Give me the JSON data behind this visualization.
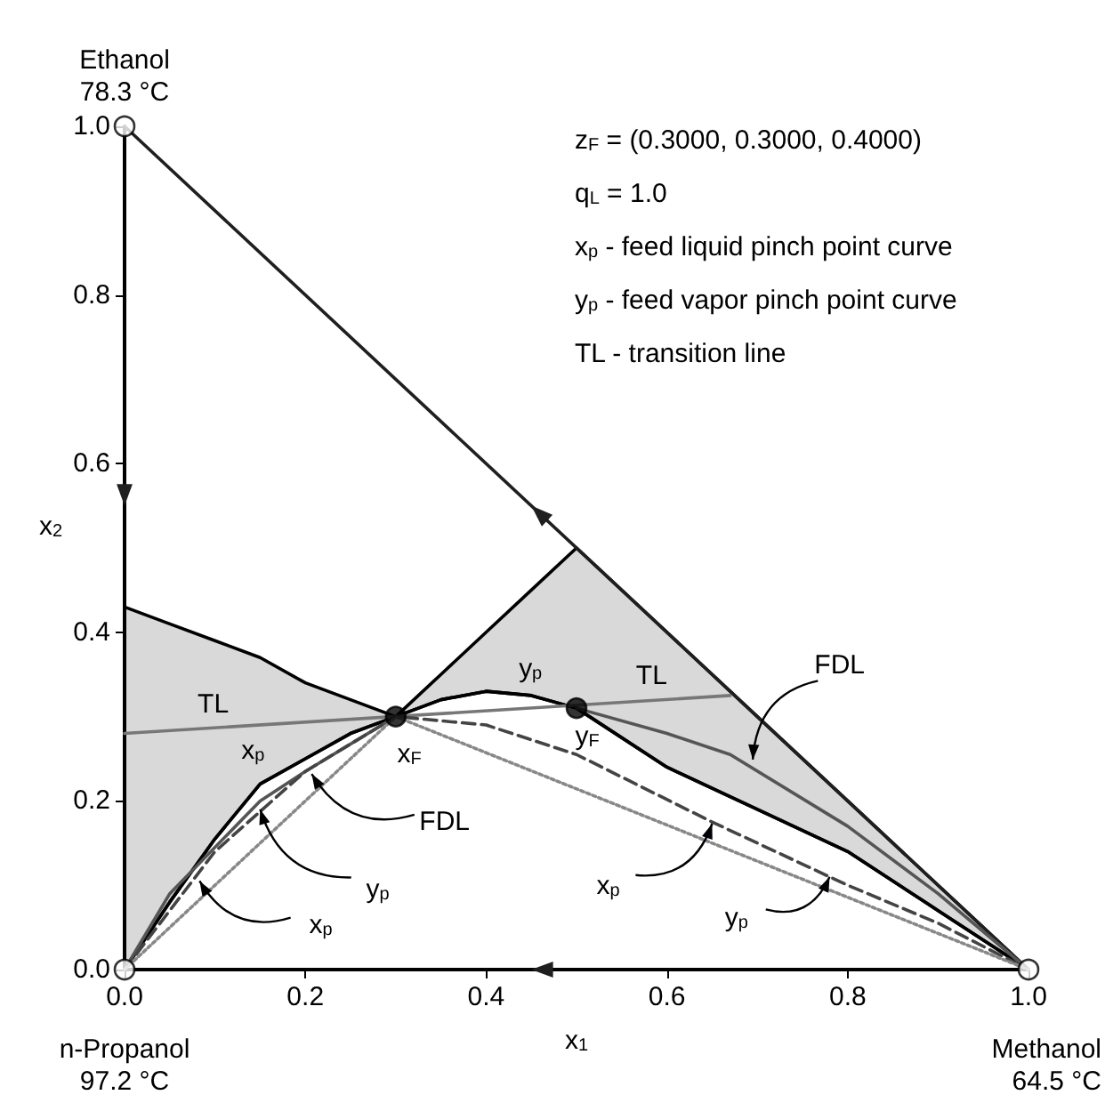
{
  "chart_data": {
    "type": "line",
    "xlabel": "x$_{1}$",
    "ylabel": "x$_{2}$",
    "xlim": [
      0,
      1
    ],
    "ylim": [
      0,
      1
    ],
    "xticks": [
      {
        "value": 0,
        "label": "0.0"
      },
      0.2,
      0.4,
      0.6,
      0.8,
      {
        "value": 1,
        "label": "1.0"
      }
    ],
    "yticks": [
      {
        "value": 0,
        "label": "0.0"
      },
      0.2,
      0.4,
      0.6,
      0.8,
      {
        "value": 1,
        "label": "1.0"
      }
    ],
    "grid": false,
    "series": [
      {
        "color": "#1f1f1f",
        "x": [
          0,
          1
        ],
        "values": [
          1,
          0
        ]
      },
      {
        "color": "#000000",
        "x": [
          0,
          0.05,
          0.1,
          0.15,
          0.2,
          0.25,
          0.3,
          0.35,
          0.4,
          0.45,
          0.5,
          0.6,
          0.7,
          0.8,
          0.9,
          1
        ],
        "values": [
          0,
          0.08,
          0.155,
          0.22,
          0.25,
          0.28,
          0.3,
          0.32,
          0.33,
          0.325,
          0.31,
          0.24,
          0.19,
          0.14,
          0.07,
          0
        ],
        "lower": [
          0,
          0.08,
          0.155,
          0.22,
          0.25,
          0.28,
          0.3,
          0.32,
          0.33,
          0.325,
          0.31,
          0.24,
          0.19,
          0.14,
          0.07,
          0
        ],
        "upper": [
          0.43,
          0.41,
          0.39,
          0.37,
          0.34,
          0.32,
          0.3,
          0.35,
          0.4,
          0.45,
          0.5,
          0.4,
          0.3,
          0.2,
          0.1,
          0
        ]
      },
      {
        "color": "#777777",
        "x": [
          0,
          0.67
        ],
        "values": [
          0.28,
          0.325
        ]
      },
      {
        "color": "#555555",
        "x": [
          0,
          0.05,
          0.15,
          0.2,
          0.3,
          0.4,
          0.5,
          0.6,
          0.67,
          0.8,
          0.9,
          1
        ],
        "values": [
          0,
          0.09,
          0.2,
          0.235,
          0.3,
          null,
          0.31,
          0.28,
          0.255,
          0.17,
          0.09,
          0
        ]
      },
      {
        "color": "#444444",
        "line_style": "dashed",
        "x": [
          0,
          0.1,
          0.2,
          0.3,
          0.4,
          0.5,
          0.65,
          0.8,
          0.9,
          1
        ],
        "values": [
          0,
          0.14,
          0.235,
          0.3,
          0.29,
          0.255,
          0.175,
          0.1,
          0.055,
          0
        ]
      },
      {
        "color": "#888888",
        "line_style": "dotted",
        "x": [
          0,
          0.3,
          1
        ],
        "values": [
          0,
          0.3,
          0
        ]
      },
      {
        "type": "scatter",
        "marker": "circle",
        "color": "#ffffff",
        "x": [
          0,
          1,
          0
        ],
        "values": [
          1,
          0,
          0
        ]
      },
      {
        "type": "scatter",
        "marker": "circle",
        "color": "#000000",
        "x": [
          0.3,
          0.5
        ],
        "values": [
          0.3,
          0.31
        ]
      }
    ],
    "annotations": [
      "z$_{F}$ = (0.3000, 0.3000, 0.4000)",
      "q$_{L}$ = 1.0",
      "x$_{p}$ - feed liquid pinch point curve",
      "y$_{p}$ - feed vapor pinch point curve",
      "TL - transition line",
      "Ethanol\n78.3 °C",
      "n-Propanol\n97.2 °C",
      "Methanol\n64.5 °C",
      "TL",
      "x$_{p}$",
      "x$_{F}$",
      "y$_{p}$",
      "TL",
      "y$_{F}$",
      {
        "text": "FDL",
        "x": 0.695,
        "y": 0.249
      },
      {
        "text": "FDL",
        "x": 0.207,
        "y": 0.232
      },
      {
        "text": "y$_{p}$",
        "x": 0.15,
        "y": 0.19
      },
      {
        "text": "x$_{p}$",
        "x": 0.083,
        "y": 0.105
      },
      {
        "text": "x$_{p}$",
        "x": 0.65,
        "y": 0.173
      },
      {
        "text": "y$_{p}$",
        "x": 0.78,
        "y": 0.11
      }
    ]
  }
}
